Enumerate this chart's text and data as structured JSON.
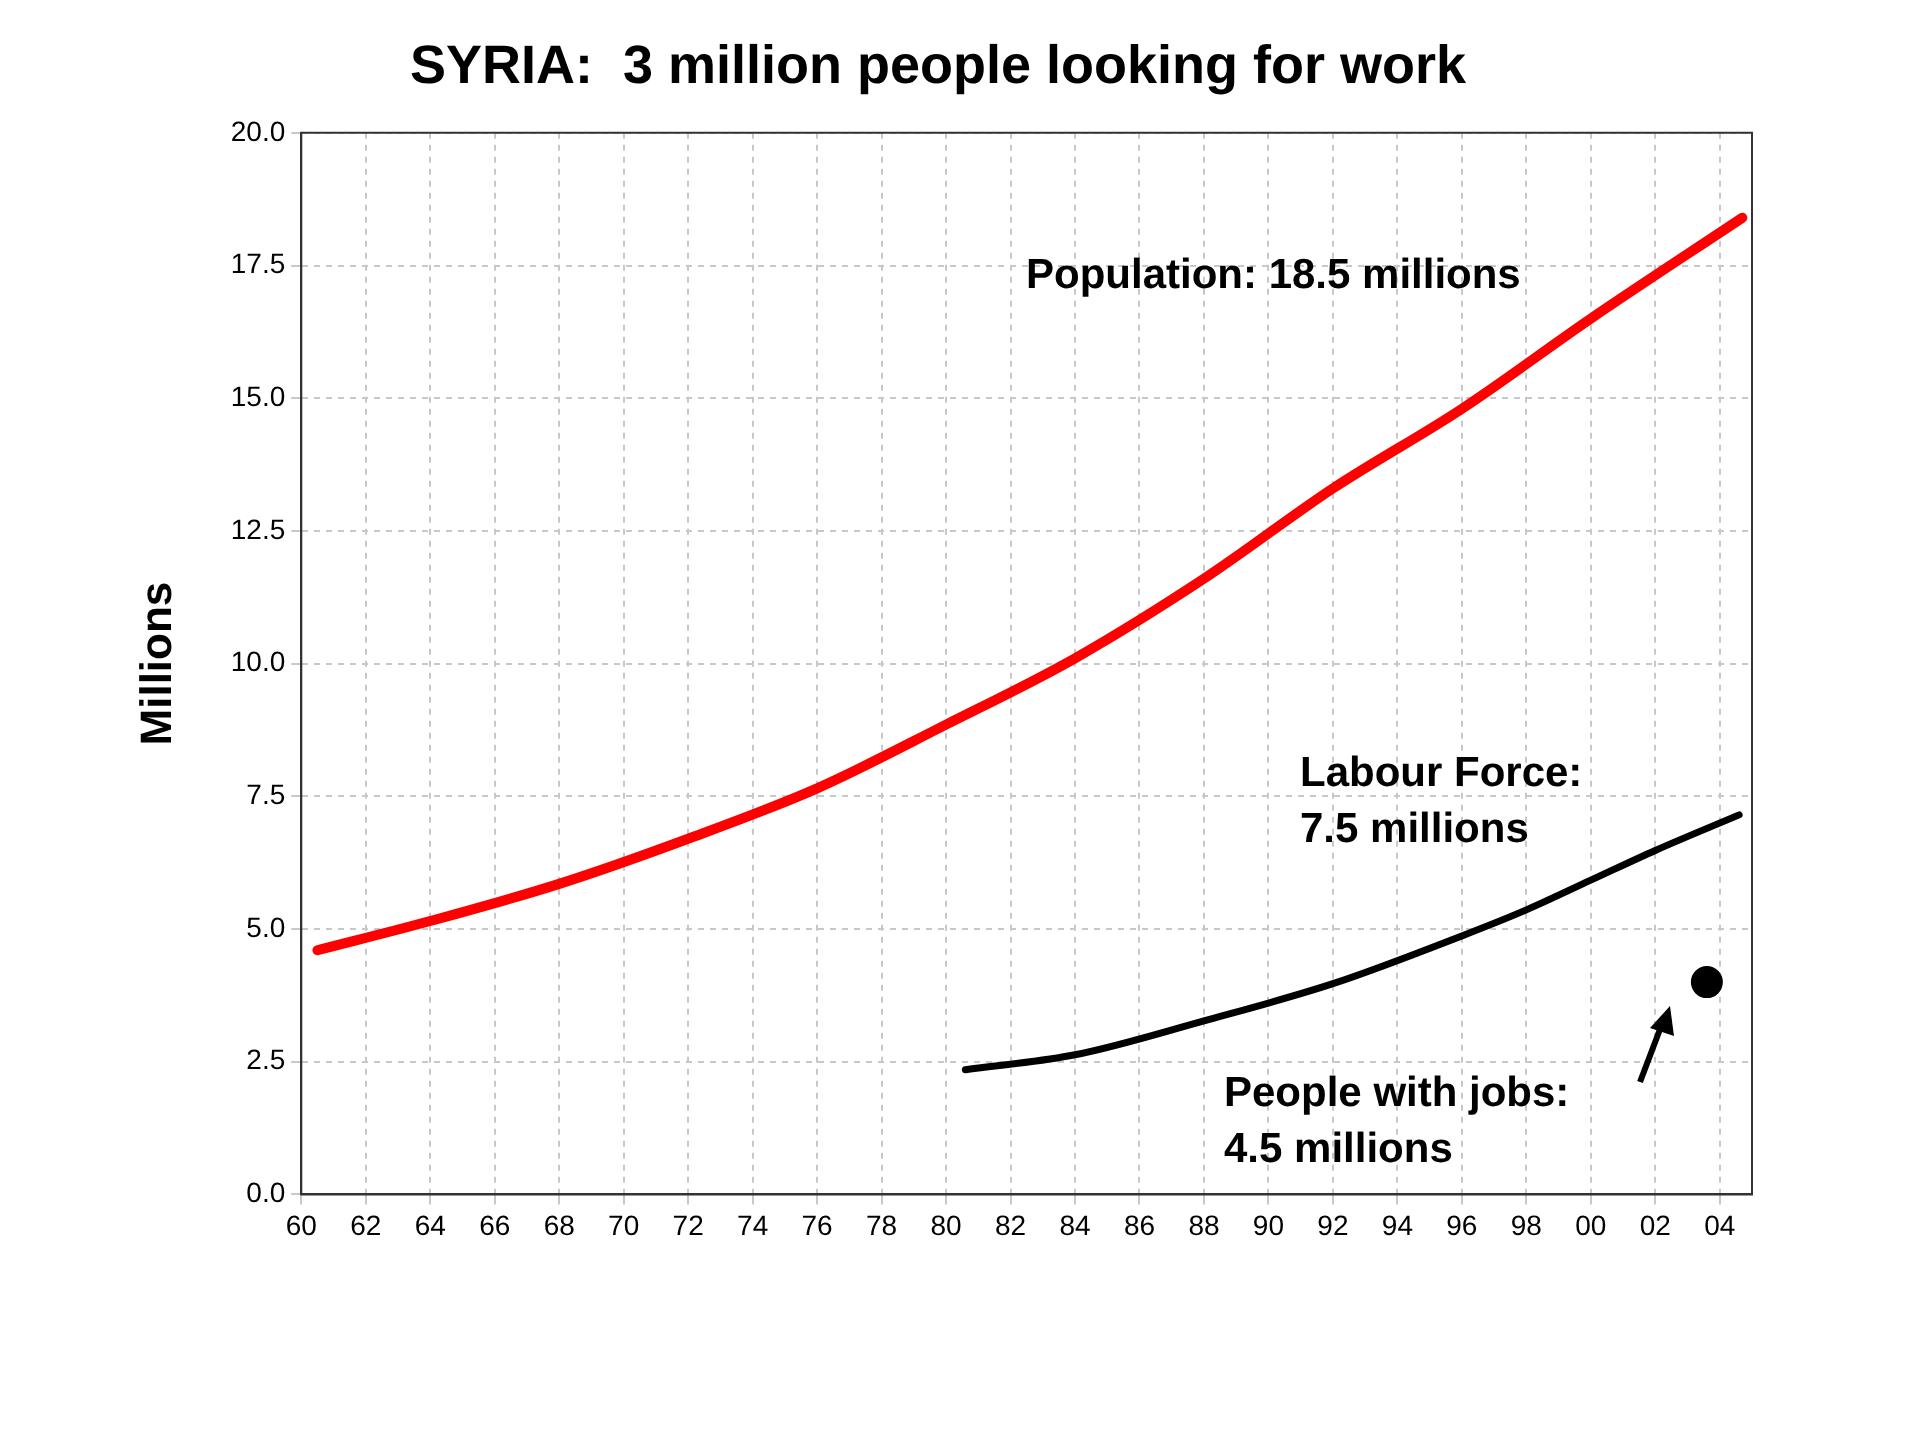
{
  "chart_data": {
    "type": "line",
    "title": "SYRIA:  3 million people looking for work",
    "ylabel": "Millions",
    "xlim": [
      1960,
      2005
    ],
    "ylim": [
      0,
      20
    ],
    "xticks": [
      {
        "value": 1960,
        "label": "60"
      },
      {
        "value": 1962,
        "label": "62"
      },
      {
        "value": 1964,
        "label": "64"
      },
      {
        "value": 1966,
        "label": "66"
      },
      {
        "value": 1968,
        "label": "68"
      },
      {
        "value": 1970,
        "label": "70"
      },
      {
        "value": 1972,
        "label": "72"
      },
      {
        "value": 1974,
        "label": "74"
      },
      {
        "value": 1976,
        "label": "76"
      },
      {
        "value": 1978,
        "label": "78"
      },
      {
        "value": 1980,
        "label": "80"
      },
      {
        "value": 1982,
        "label": "82"
      },
      {
        "value": 1984,
        "label": "84"
      },
      {
        "value": 1986,
        "label": "86"
      },
      {
        "value": 1988,
        "label": "88"
      },
      {
        "value": 1990,
        "label": "90"
      },
      {
        "value": 1992,
        "label": "92"
      },
      {
        "value": 1994,
        "label": "94"
      },
      {
        "value": 1996,
        "label": "96"
      },
      {
        "value": 1998,
        "label": "98"
      },
      {
        "value": 2000,
        "label": "00"
      },
      {
        "value": 2002,
        "label": "02"
      },
      {
        "value": 2004,
        "label": "04"
      }
    ],
    "yticks": [
      {
        "value": 0,
        "label": "0.0"
      },
      {
        "value": 2.5,
        "label": "2.5"
      },
      {
        "value": 5,
        "label": "5.0"
      },
      {
        "value": 7.5,
        "label": "7.5"
      },
      {
        "value": 10,
        "label": "10.0"
      },
      {
        "value": 12.5,
        "label": "12.5"
      },
      {
        "value": 15,
        "label": "15.0"
      },
      {
        "value": 17.5,
        "label": "17.5"
      },
      {
        "value": 20,
        "label": "20.0"
      }
    ],
    "grid": true,
    "legend": false,
    "line_style": "solid",
    "series": [
      {
        "type": "line",
        "color": "#ff0000",
        "marker": "none",
        "x": [
          1960.5,
          1964,
          1968,
          1972,
          1976,
          1980,
          1984,
          1988,
          1992,
          1996,
          2000,
          2004.7
        ],
        "values": [
          4.6,
          5.15,
          5.85,
          6.7,
          7.65,
          8.85,
          10.1,
          11.6,
          13.3,
          14.8,
          16.5,
          18.4
        ]
      },
      {
        "type": "line",
        "color": "#000000",
        "marker": "none",
        "x": [
          1980.6,
          1984,
          1988,
          1992,
          1996,
          1998,
          2000,
          2002,
          2004.6
        ],
        "values": [
          2.35,
          2.63,
          3.27,
          3.97,
          4.87,
          5.36,
          5.92,
          6.48,
          7.15
        ]
      },
      {
        "type": "scatter",
        "color": "#000000",
        "marker": "circle",
        "x": [
          2003.6
        ],
        "values": [
          4.0
        ]
      }
    ],
    "annotations": [
      "Population: 18.5 millions",
      "Labour Force:\n7.5 millions",
      "People with jobs:\n4.5 millions"
    ]
  }
}
